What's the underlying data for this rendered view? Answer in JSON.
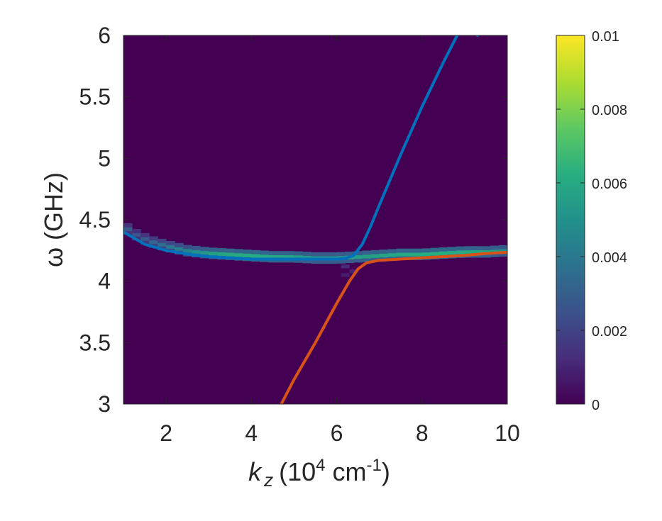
{
  "chart_data": {
    "type": "heatmap",
    "xlabel": {
      "base": "k",
      "sub": "z",
      "open": "(10",
      "exp1": "4",
      "unit": " cm",
      "exp2": "-1",
      "close": ")"
    },
    "ylabel": "ω (GHz)",
    "xlim": [
      1,
      10
    ],
    "ylim": [
      3,
      6
    ],
    "x_ticks": [
      2,
      4,
      6,
      8,
      10
    ],
    "x_tick_labels": [
      "2",
      "4",
      "6",
      "8",
      "10"
    ],
    "y_ticks": [
      3,
      3.5,
      4,
      4.5,
      5,
      5.5,
      6
    ],
    "y_tick_labels": [
      "3",
      "3.5",
      "4",
      "4.5",
      "5",
      "5.5",
      "6"
    ],
    "colorbar": {
      "range": [
        0,
        0.01
      ],
      "ticks": [
        0,
        0.002,
        0.004,
        0.006,
        0.008,
        0.01
      ],
      "tick_labels": [
        "0",
        "0.002",
        "0.004",
        "0.006",
        "0.008",
        "0.01"
      ],
      "colormap": "parula-like",
      "stops": [
        "#440154",
        "#472d7b",
        "#3b528b",
        "#2c728e",
        "#21918c",
        "#28ae80",
        "#5ec962",
        "#addc30",
        "#fde725"
      ]
    },
    "background_color": "#440154",
    "heatmap_ridge": {
      "description": "intensity concentrated along the flat spin-wave band",
      "points": [
        {
          "k": 1.0,
          "w": 4.45,
          "v": 0.003
        },
        {
          "k": 1.3,
          "w": 4.38,
          "v": 0.0025
        },
        {
          "k": 1.6,
          "w": 4.33,
          "v": 0.003
        },
        {
          "k": 2.0,
          "w": 4.29,
          "v": 0.0038
        },
        {
          "k": 2.5,
          "w": 4.25,
          "v": 0.0045
        },
        {
          "k": 3.0,
          "w": 4.23,
          "v": 0.0055
        },
        {
          "k": 3.5,
          "w": 4.22,
          "v": 0.006
        },
        {
          "k": 4.0,
          "w": 4.21,
          "v": 0.0062
        },
        {
          "k": 4.5,
          "w": 4.2,
          "v": 0.006
        },
        {
          "k": 5.0,
          "w": 4.2,
          "v": 0.0058
        },
        {
          "k": 5.5,
          "w": 4.19,
          "v": 0.0055
        },
        {
          "k": 6.0,
          "w": 4.19,
          "v": 0.0055
        },
        {
          "k": 6.5,
          "w": 4.2,
          "v": 0.0055
        },
        {
          "k": 7.0,
          "w": 4.21,
          "v": 0.0058
        },
        {
          "k": 7.5,
          "w": 4.22,
          "v": 0.006
        },
        {
          "k": 8.0,
          "w": 4.22,
          "v": 0.0062
        },
        {
          "k": 8.5,
          "w": 4.23,
          "v": 0.0062
        },
        {
          "k": 9.0,
          "w": 4.24,
          "v": 0.006
        },
        {
          "k": 9.5,
          "w": 4.24,
          "v": 0.0058
        },
        {
          "k": 10.0,
          "w": 4.25,
          "v": 0.005
        }
      ]
    },
    "series": [
      {
        "color": "#0072bd",
        "x": [
          1.0,
          1.5,
          2.0,
          2.5,
          3.0,
          3.5,
          4.0,
          4.5,
          5.0,
          5.5,
          6.0,
          6.2,
          6.4,
          6.6,
          6.8,
          7.0,
          7.5,
          8.0,
          8.5,
          9.0,
          9.3
        ],
        "y": [
          4.4,
          4.3,
          4.25,
          4.22,
          4.2,
          4.19,
          4.18,
          4.18,
          4.18,
          4.18,
          4.18,
          4.185,
          4.21,
          4.3,
          4.45,
          4.62,
          5.03,
          5.42,
          5.78,
          6.12,
          6.0
        ]
      },
      {
        "color": "#d95319",
        "x": [
          4.7,
          5.0,
          5.5,
          6.0,
          6.3,
          6.5,
          6.7,
          7.0,
          7.5,
          8.0,
          8.5,
          9.0,
          9.5,
          10.0
        ],
        "y": [
          3.0,
          3.2,
          3.5,
          3.82,
          4.0,
          4.1,
          4.15,
          4.17,
          4.18,
          4.19,
          4.2,
          4.21,
          4.225,
          4.235
        ]
      }
    ]
  }
}
